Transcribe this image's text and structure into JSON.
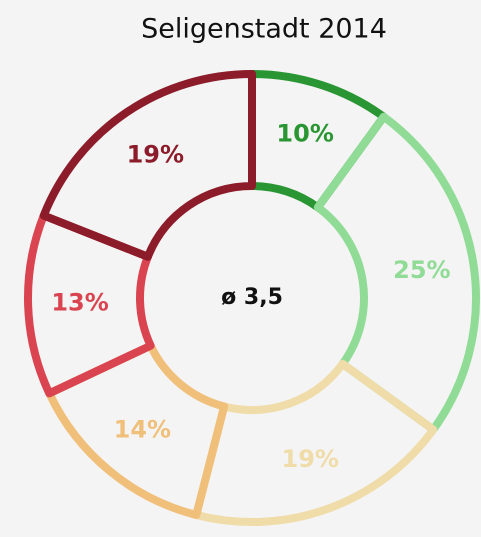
{
  "chart_data": {
    "type": "donut",
    "title": "Seligenstadt 2014",
    "center_label": "ø 3,5",
    "values": [
      10,
      25,
      19,
      14,
      13,
      19
    ],
    "value_labels": [
      "10%",
      "25%",
      "19%",
      "14%",
      "13%",
      "19%"
    ],
    "colors": [
      "#2a9633",
      "#90dc96",
      "#f0dca8",
      "#f0bf7a",
      "#d94450",
      "#8c1c2a"
    ]
  }
}
